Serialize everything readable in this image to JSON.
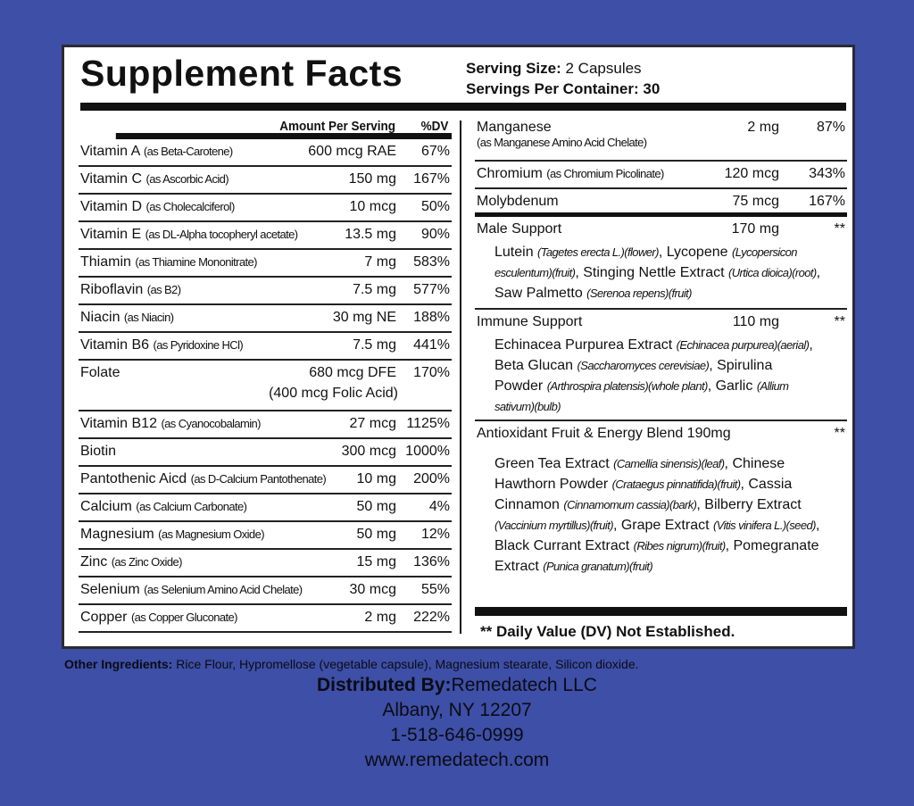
{
  "title": "Supplement Facts",
  "serving_size_label": "Serving Size:",
  "serving_size": "2 Capsules",
  "servings_label": "Servings Per Container:",
  "servings": "30",
  "header": {
    "amount": "Amount Per Serving",
    "dv": "%DV"
  },
  "left_rows": [
    {
      "name": "Vitamin A",
      "source": "(as Beta-Carotene)",
      "amount": "600 mcg RAE",
      "dv": "67%"
    },
    {
      "name": "Vitamin C",
      "source": "(as Ascorbic Acid)",
      "amount": "150 mg",
      "dv": "167%"
    },
    {
      "name": "Vitamin D",
      "source": "(as Cholecalciferol)",
      "amount": "10 mcg",
      "dv": "50%"
    },
    {
      "name": "Vitamin E",
      "source": "(as DL-Alpha tocopheryl acetate)",
      "amount": "13.5 mg",
      "dv": "90%"
    },
    {
      "name": "Thiamin",
      "source": "(as Thiamine Mononitrate)",
      "amount": "7 mg",
      "dv": "583%"
    },
    {
      "name": "Riboflavin",
      "source": "(as B2)",
      "amount": "7.5 mg",
      "dv": "577%"
    },
    {
      "name": "Niacin",
      "source": "(as Niacin)",
      "amount": "30 mg NE",
      "dv": "188%"
    },
    {
      "name": "Vitamin B6",
      "source": "(as Pyridoxine HCl)",
      "amount": "7.5 mg",
      "dv": "441%"
    },
    {
      "name": "Folate",
      "source": "",
      "amount": "680 mcg DFE",
      "amount2": "(400 mcg Folic Acid)",
      "dv": "170%"
    },
    {
      "name": "Vitamin B12",
      "source": "(as Cyanocobalamin)",
      "amount": "27 mcg",
      "dv": "1125%"
    },
    {
      "name": "Biotin",
      "source": "",
      "amount": "300 mcg",
      "dv": "1000%"
    },
    {
      "name": "Pantothenic Aicd",
      "source": "(as D-Calcium Pantothenate)",
      "amount": "10 mg",
      "dv": "200%"
    },
    {
      "name": "Calcium",
      "source": "(as Calcium Carbonate)",
      "amount": "50 mg",
      "dv": "4%"
    },
    {
      "name": "Magnesium",
      "source": "(as Magnesium Oxide)",
      "amount": "50 mg",
      "dv": "12%"
    },
    {
      "name": "Zinc",
      "source": "(as Zinc Oxide)",
      "amount": "15 mg",
      "dv": "136%"
    },
    {
      "name": "Selenium",
      "source": "(as Selenium Amino Acid Chelate)",
      "amount": "30 mcg",
      "dv": "55%"
    },
    {
      "name": "Copper",
      "source": "(as Copper Gluconate)",
      "amount": "2 mg",
      "dv": "222%"
    }
  ],
  "right_rows": [
    {
      "name": "Manganese",
      "source": "(as Manganese Amino Acid Chelate)",
      "amount": "2 mg",
      "dv": "87%"
    },
    {
      "name": "Chromium",
      "source": "(as Chromium Picolinate)",
      "amount": "120 mcg",
      "dv": "343%"
    },
    {
      "name": "Molybdenum",
      "source": "",
      "amount": "75 mcg",
      "dv": "167%"
    }
  ],
  "blends": [
    {
      "name": "Male Support",
      "amount": "170 mg",
      "dv": "**",
      "ingredients": [
        [
          "Lutein",
          "(Tagetes erecta L.)(flower)"
        ],
        [
          "Lycopene",
          "(Lycopersicon esculentum)(fruit)"
        ],
        [
          "Stinging Nettle Extract",
          "(Urtica dioica)(root)"
        ],
        [
          "Saw Palmetto",
          "(Serenoa repens)(fruit)"
        ]
      ]
    },
    {
      "name": "Immune Support",
      "amount": "110 mg",
      "dv": "**",
      "ingredients": [
        [
          "Echinacea Purpurea Extract",
          "(Echinacea purpurea)(aerial)"
        ],
        [
          "Beta Glucan",
          "(Saccharomyces cerevisiae)"
        ],
        [
          "Spirulina Powder",
          "(Arthrospira platensis)(whole plant)"
        ],
        [
          "Garlic",
          "(Allium sativum)(bulb)"
        ]
      ]
    },
    {
      "name": "Antioxidant Fruit & Energy Blend 190mg",
      "amount": "",
      "dv": "**",
      "ingredients": [
        [
          "Green Tea Extract",
          "(Camellia sinensis)(leaf)"
        ],
        [
          "Chinese Hawthorn Powder",
          "(Crataegus pinnatifida)(fruit)"
        ],
        [
          "Cassia Cinnamon",
          "(Cinnamomum cassia)(bark)"
        ],
        [
          "Bilberry Extract",
          "(Vaccinium myrtillus)(fruit)"
        ],
        [
          "Grape Extract",
          "(Vitis vinifera L.)(seed)"
        ],
        [
          "Black Currant Extract",
          "(Ribes nigrum)(fruit)"
        ],
        [
          "Pomegranate Extract",
          "(Punica granatum)(fruit)"
        ]
      ]
    }
  ],
  "footnote": "** Daily Value (DV) Not Established.",
  "other_label": "Other Ingredients:",
  "other": "Rice Flour, Hypromellose (vegetable capsule), Magnesium stearate, Silicon dioxide.",
  "dist_label": "Distributed By:",
  "dist_name": "Remedatech LLC",
  "address": "Albany, NY 12207",
  "phone": "1-518-646-0999",
  "website": "www.remedatech.com",
  "colors": {
    "background": "#3d4fa6",
    "panel": "#ffffff",
    "text": "#111111"
  }
}
